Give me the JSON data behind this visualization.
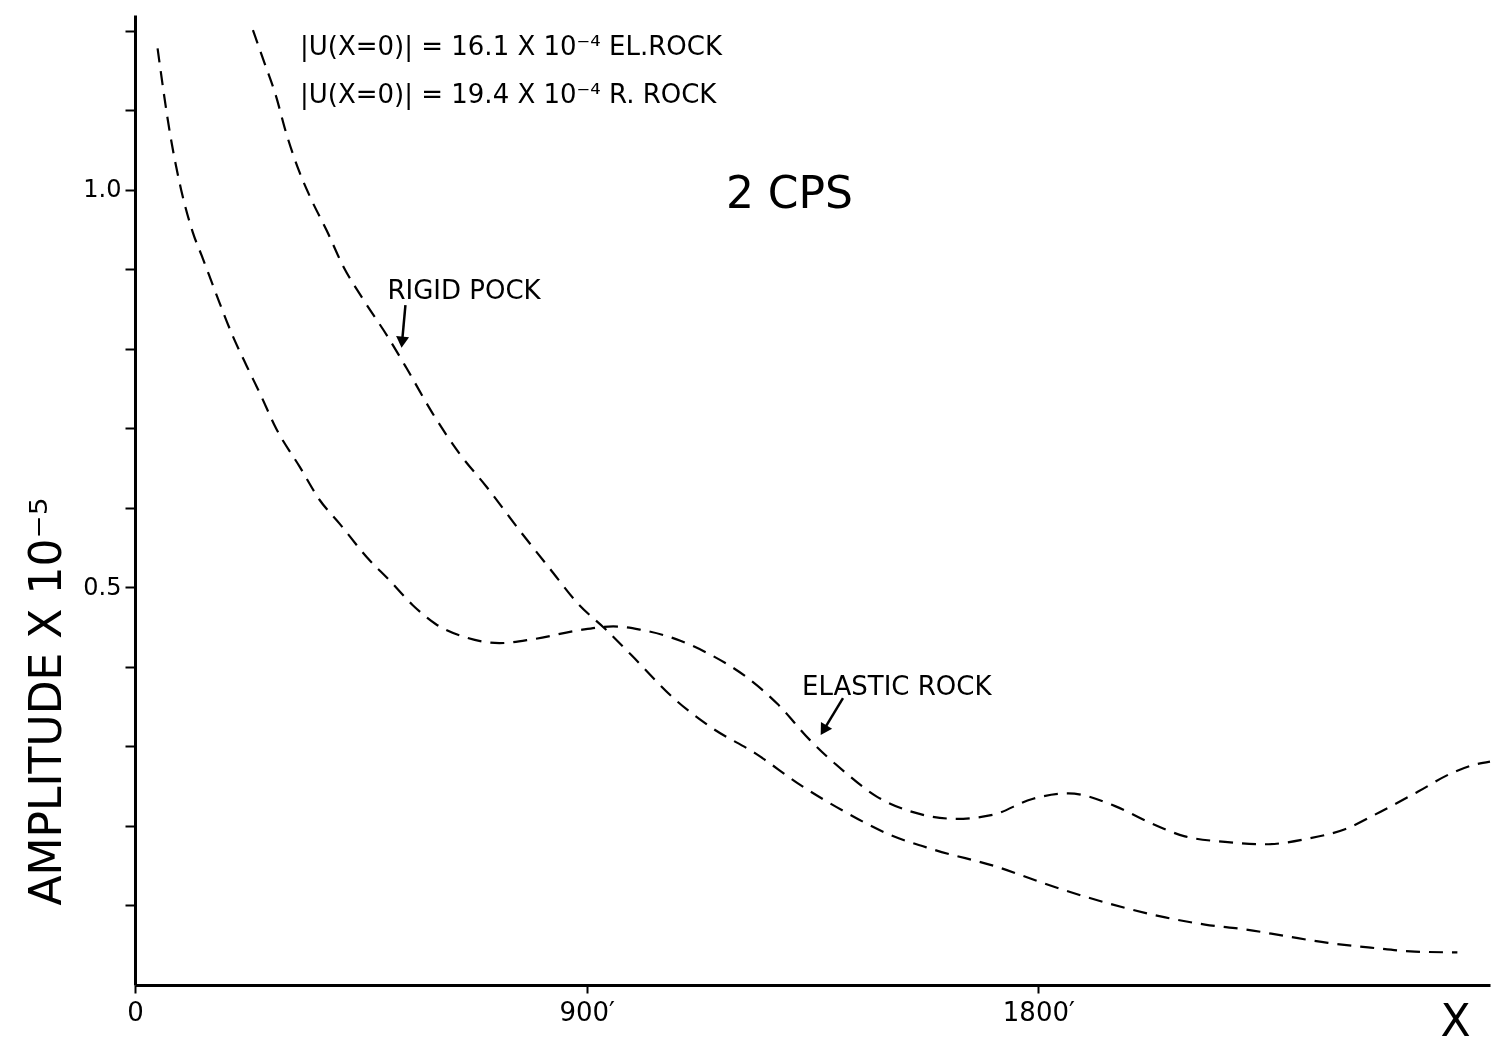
{
  "chart_data": {
    "type": "line",
    "title": "2 CPS",
    "xlabel": "X",
    "ylabel": "AMPLITUDE X 10⁻⁵",
    "annotations": [
      "|U(X=0)| = 16.1 X 10⁻⁴ EL.ROCK",
      "|U(X=0)| = 19.4 X 10⁻⁴ R. ROCK"
    ],
    "xlim": [
      0,
      2700
    ],
    "ylim": [
      0,
      1.22
    ],
    "xticks": [
      0,
      {
        "value": 900,
        "label": "900′"
      },
      {
        "value": 1800,
        "label": "1800′"
      }
    ],
    "yticks": [
      {
        "value": 0.1,
        "label": null
      },
      {
        "value": 0.2,
        "label": null
      },
      {
        "value": 0.3,
        "label": null
      },
      {
        "value": 0.4,
        "label": null
      },
      0.5,
      {
        "value": 0.6,
        "label": null
      },
      {
        "value": 0.7,
        "label": null
      },
      {
        "value": 0.8,
        "label": null
      },
      {
        "value": 0.9,
        "label": null
      },
      {
        "value": 1,
        "label": "1.0"
      },
      {
        "value": 1.1,
        "label": null
      },
      {
        "value": 1.2,
        "label": null
      }
    ],
    "line_style": "dashed",
    "series": [
      {
        "name": "ELASTIC ROCK",
        "color": "#000000",
        "x": [
          45,
          70,
          92,
          115,
          135,
          163,
          195,
          223,
          249,
          282,
          328,
          368,
          408,
          462,
          507,
          553,
          599,
          660,
          726,
          794,
          883,
          953,
          1006,
          1078,
          1148,
          1219,
          1281,
          1345,
          1414,
          1478,
          1547,
          1637,
          1709,
          1788,
          1860,
          1953,
          2019,
          2092,
          2172,
          2252,
          2337,
          2411,
          2482,
          2556,
          2622,
          2675,
          2700
        ],
        "values": [
          1.178,
          1.07,
          1.0,
          0.947,
          0.914,
          0.867,
          0.816,
          0.778,
          0.744,
          0.699,
          0.652,
          0.61,
          0.58,
          0.538,
          0.509,
          0.478,
          0.454,
          0.437,
          0.43,
          0.435,
          0.446,
          0.451,
          0.447,
          0.435,
          0.415,
          0.387,
          0.353,
          0.308,
          0.268,
          0.237,
          0.218,
          0.209,
          0.214,
          0.234,
          0.241,
          0.225,
          0.205,
          0.187,
          0.18,
          0.177,
          0.184,
          0.196,
          0.218,
          0.243,
          0.266,
          0.278,
          0.281
        ]
      },
      {
        "name": "RIGID POCK",
        "color": "#000000",
        "x": [
          235,
          259,
          280,
          302,
          328,
          352,
          382,
          414,
          454,
          503,
          541,
          593,
          647,
          700,
          766,
          825,
          885,
          935,
          989,
          1078,
          1148,
          1237,
          1327,
          1414,
          1504,
          1593,
          1721,
          1806,
          1894,
          1973,
          2053,
          2132,
          2212,
          2297,
          2377,
          2462,
          2550,
          2635
        ],
        "values": [
          1.201,
          1.158,
          1.12,
          1.07,
          1.022,
          0.987,
          0.949,
          0.905,
          0.863,
          0.816,
          0.776,
          0.719,
          0.668,
          0.627,
          0.572,
          0.525,
          0.478,
          0.449,
          0.415,
          0.358,
          0.324,
          0.291,
          0.251,
          0.218,
          0.189,
          0.17,
          0.148,
          0.129,
          0.111,
          0.097,
          0.085,
          0.076,
          0.07,
          0.061,
          0.053,
          0.047,
          0.042,
          0.041
        ]
      }
    ]
  }
}
